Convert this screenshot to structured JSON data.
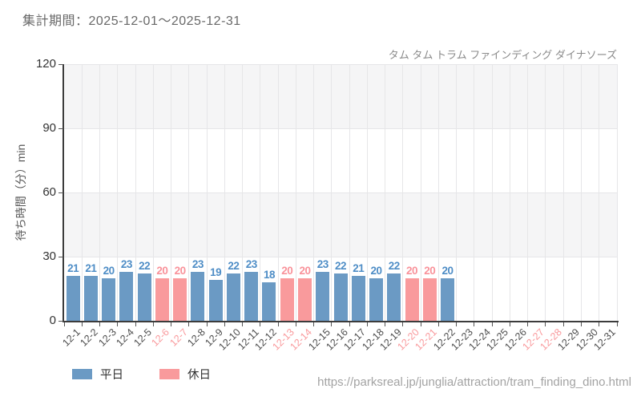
{
  "header": {
    "period": "集計期間：2025-12-01～2025-12-31"
  },
  "chart_data": {
    "type": "bar",
    "title": "タム タム トラム ファインディング ダイナソーズ",
    "xlabel": "",
    "ylabel": "待ち時間（分）min",
    "ylim": [
      0,
      120
    ],
    "yticks": [
      0,
      30,
      60,
      90,
      120
    ],
    "grid": true,
    "legend_position": "bottom-left",
    "categories": [
      "12-1",
      "12-2",
      "12-3",
      "12-4",
      "12-5",
      "12-6",
      "12-7",
      "12-8",
      "12-9",
      "12-10",
      "12-11",
      "12-12",
      "12-13",
      "12-14",
      "12-15",
      "12-16",
      "12-17",
      "12-18",
      "12-19",
      "12-20",
      "12-21",
      "12-22",
      "12-23",
      "12-24",
      "12-25",
      "12-26",
      "12-27",
      "12-28",
      "12-29",
      "12-30",
      "12-31"
    ],
    "day_types": [
      "weekday",
      "weekday",
      "weekday",
      "weekday",
      "weekday",
      "holiday",
      "holiday",
      "weekday",
      "weekday",
      "weekday",
      "weekday",
      "weekday",
      "holiday",
      "holiday",
      "weekday",
      "weekday",
      "weekday",
      "weekday",
      "weekday",
      "holiday",
      "holiday",
      "weekday",
      "weekday",
      "weekday",
      "weekday",
      "weekday",
      "holiday",
      "holiday",
      "weekday",
      "weekday",
      "weekday"
    ],
    "values": [
      21,
      21,
      20,
      23,
      22,
      20,
      20,
      23,
      19,
      22,
      23,
      18,
      20,
      20,
      23,
      22,
      21,
      20,
      22,
      20,
      20,
      20,
      null,
      null,
      null,
      null,
      null,
      null,
      null,
      null,
      null
    ],
    "colors": {
      "bar_weekday": "#6b9ac4",
      "bar_holiday": "#f99a9c",
      "value_label_weekday": "#4e8dc6",
      "value_label_holiday": "#f9929a",
      "xtick_weekday": "#4d4d4d",
      "xtick_holiday": "#f9999c"
    },
    "legend": [
      {
        "label": "平日",
        "type": "weekday"
      },
      {
        "label": "休日",
        "type": "holiday"
      }
    ]
  },
  "footer": {
    "url": "https://parksreal.jp/junglia/attraction/tram_finding_dino.html"
  }
}
